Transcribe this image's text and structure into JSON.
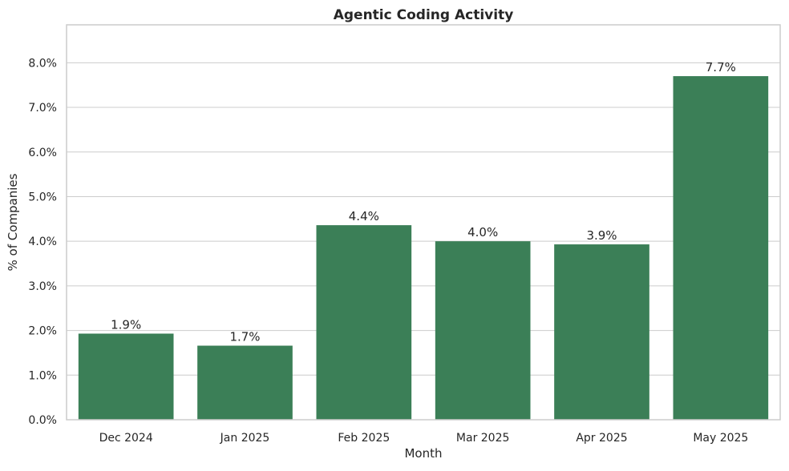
{
  "chart_data": {
    "type": "bar",
    "title": "Agentic Coding Activity",
    "xlabel": "Month",
    "ylabel": "% of Companies",
    "categories": [
      "Dec 2024",
      "Jan 2025",
      "Feb 2025",
      "Mar 2025",
      "Apr 2025",
      "May 2025"
    ],
    "values": [
      1.93,
      1.66,
      4.36,
      4.0,
      3.93,
      7.7
    ],
    "data_labels": [
      "1.9%",
      "1.7%",
      "4.4%",
      "4.0%",
      "3.9%",
      "7.7%"
    ],
    "yticks": [
      0,
      1,
      2,
      3,
      4,
      5,
      6,
      7,
      8
    ],
    "ytick_labels": [
      "0.0%",
      "1.0%",
      "2.0%",
      "3.0%",
      "4.0%",
      "5.0%",
      "6.0%",
      "7.0%",
      "8.0%"
    ],
    "ylim": [
      0,
      8.85
    ],
    "grid": true,
    "bar_color": "#3b7f57"
  }
}
